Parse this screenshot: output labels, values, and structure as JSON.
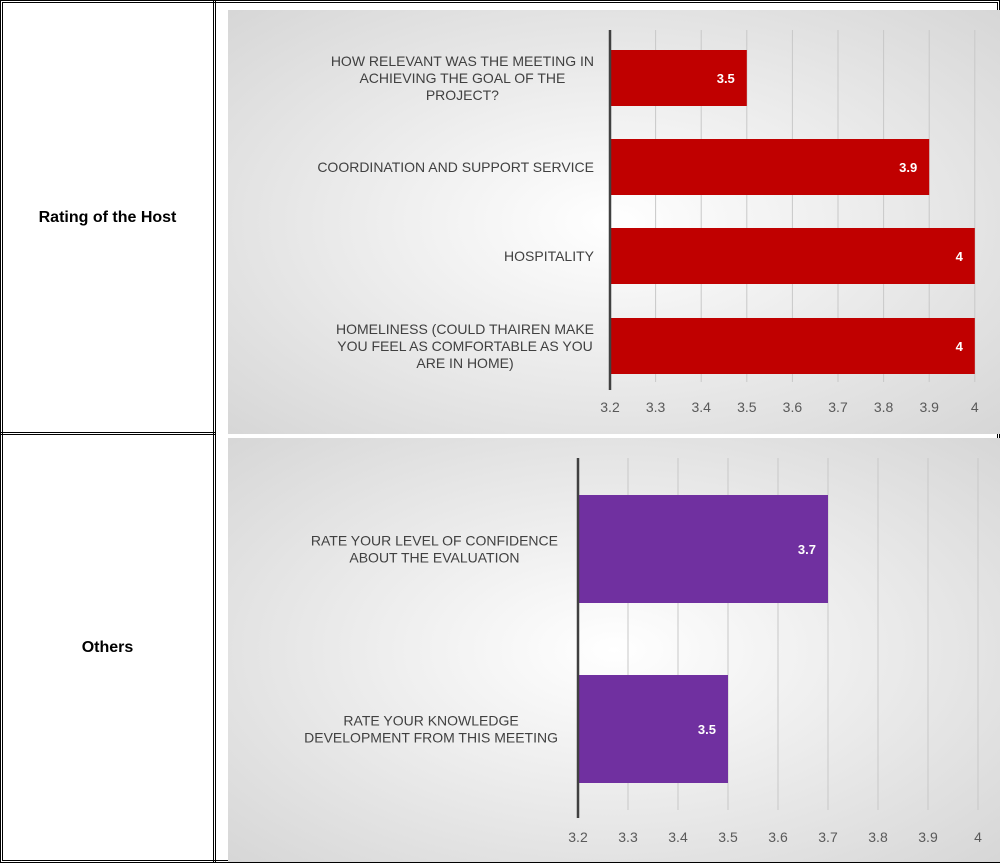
{
  "rows": [
    {
      "label": "Rating of the Host"
    },
    {
      "label": "Others"
    }
  ],
  "colors": {
    "host_bar": "#c00000",
    "others_bar": "#7030a0"
  },
  "chart_data": [
    {
      "type": "bar",
      "orientation": "horizontal",
      "categories": [
        [
          "HOW RELEVANT WAS THE MEETING IN",
          "ACHIEVING THE GOAL OF THE",
          "PROJECT?"
        ],
        [
          "COORDINATION AND SUPPORT SERVICE"
        ],
        [
          "HOSPITALITY"
        ],
        [
          "HOMELINESS (COULD THAIREN MAKE",
          "YOU FEEL AS COMFORTABLE AS YOU",
          "ARE IN HOME)"
        ]
      ],
      "values": [
        3.5,
        3.9,
        4,
        4
      ],
      "data_labels": [
        "3.5",
        "3.9",
        "4",
        "4"
      ],
      "xlim": [
        3.2,
        4
      ],
      "ticks": [
        "3.2",
        "3.3",
        "3.4",
        "3.5",
        "3.6",
        "3.7",
        "3.8",
        "3.9",
        "4"
      ],
      "grid": true
    },
    {
      "type": "bar",
      "orientation": "horizontal",
      "categories": [
        [
          "RATE YOUR LEVEL OF CONFIDENCE",
          "ABOUT THE EVALUATION"
        ],
        [
          "RATE YOUR KNOWLEDGE",
          "DEVELOPMENT FROM THIS MEETING"
        ]
      ],
      "values": [
        3.7,
        3.5
      ],
      "data_labels": [
        "3.7",
        "3.5"
      ],
      "xlim": [
        3.2,
        4
      ],
      "ticks": [
        "3.2",
        "3.3",
        "3.4",
        "3.5",
        "3.6",
        "3.7",
        "3.8",
        "3.9",
        "4"
      ],
      "grid": true
    }
  ]
}
